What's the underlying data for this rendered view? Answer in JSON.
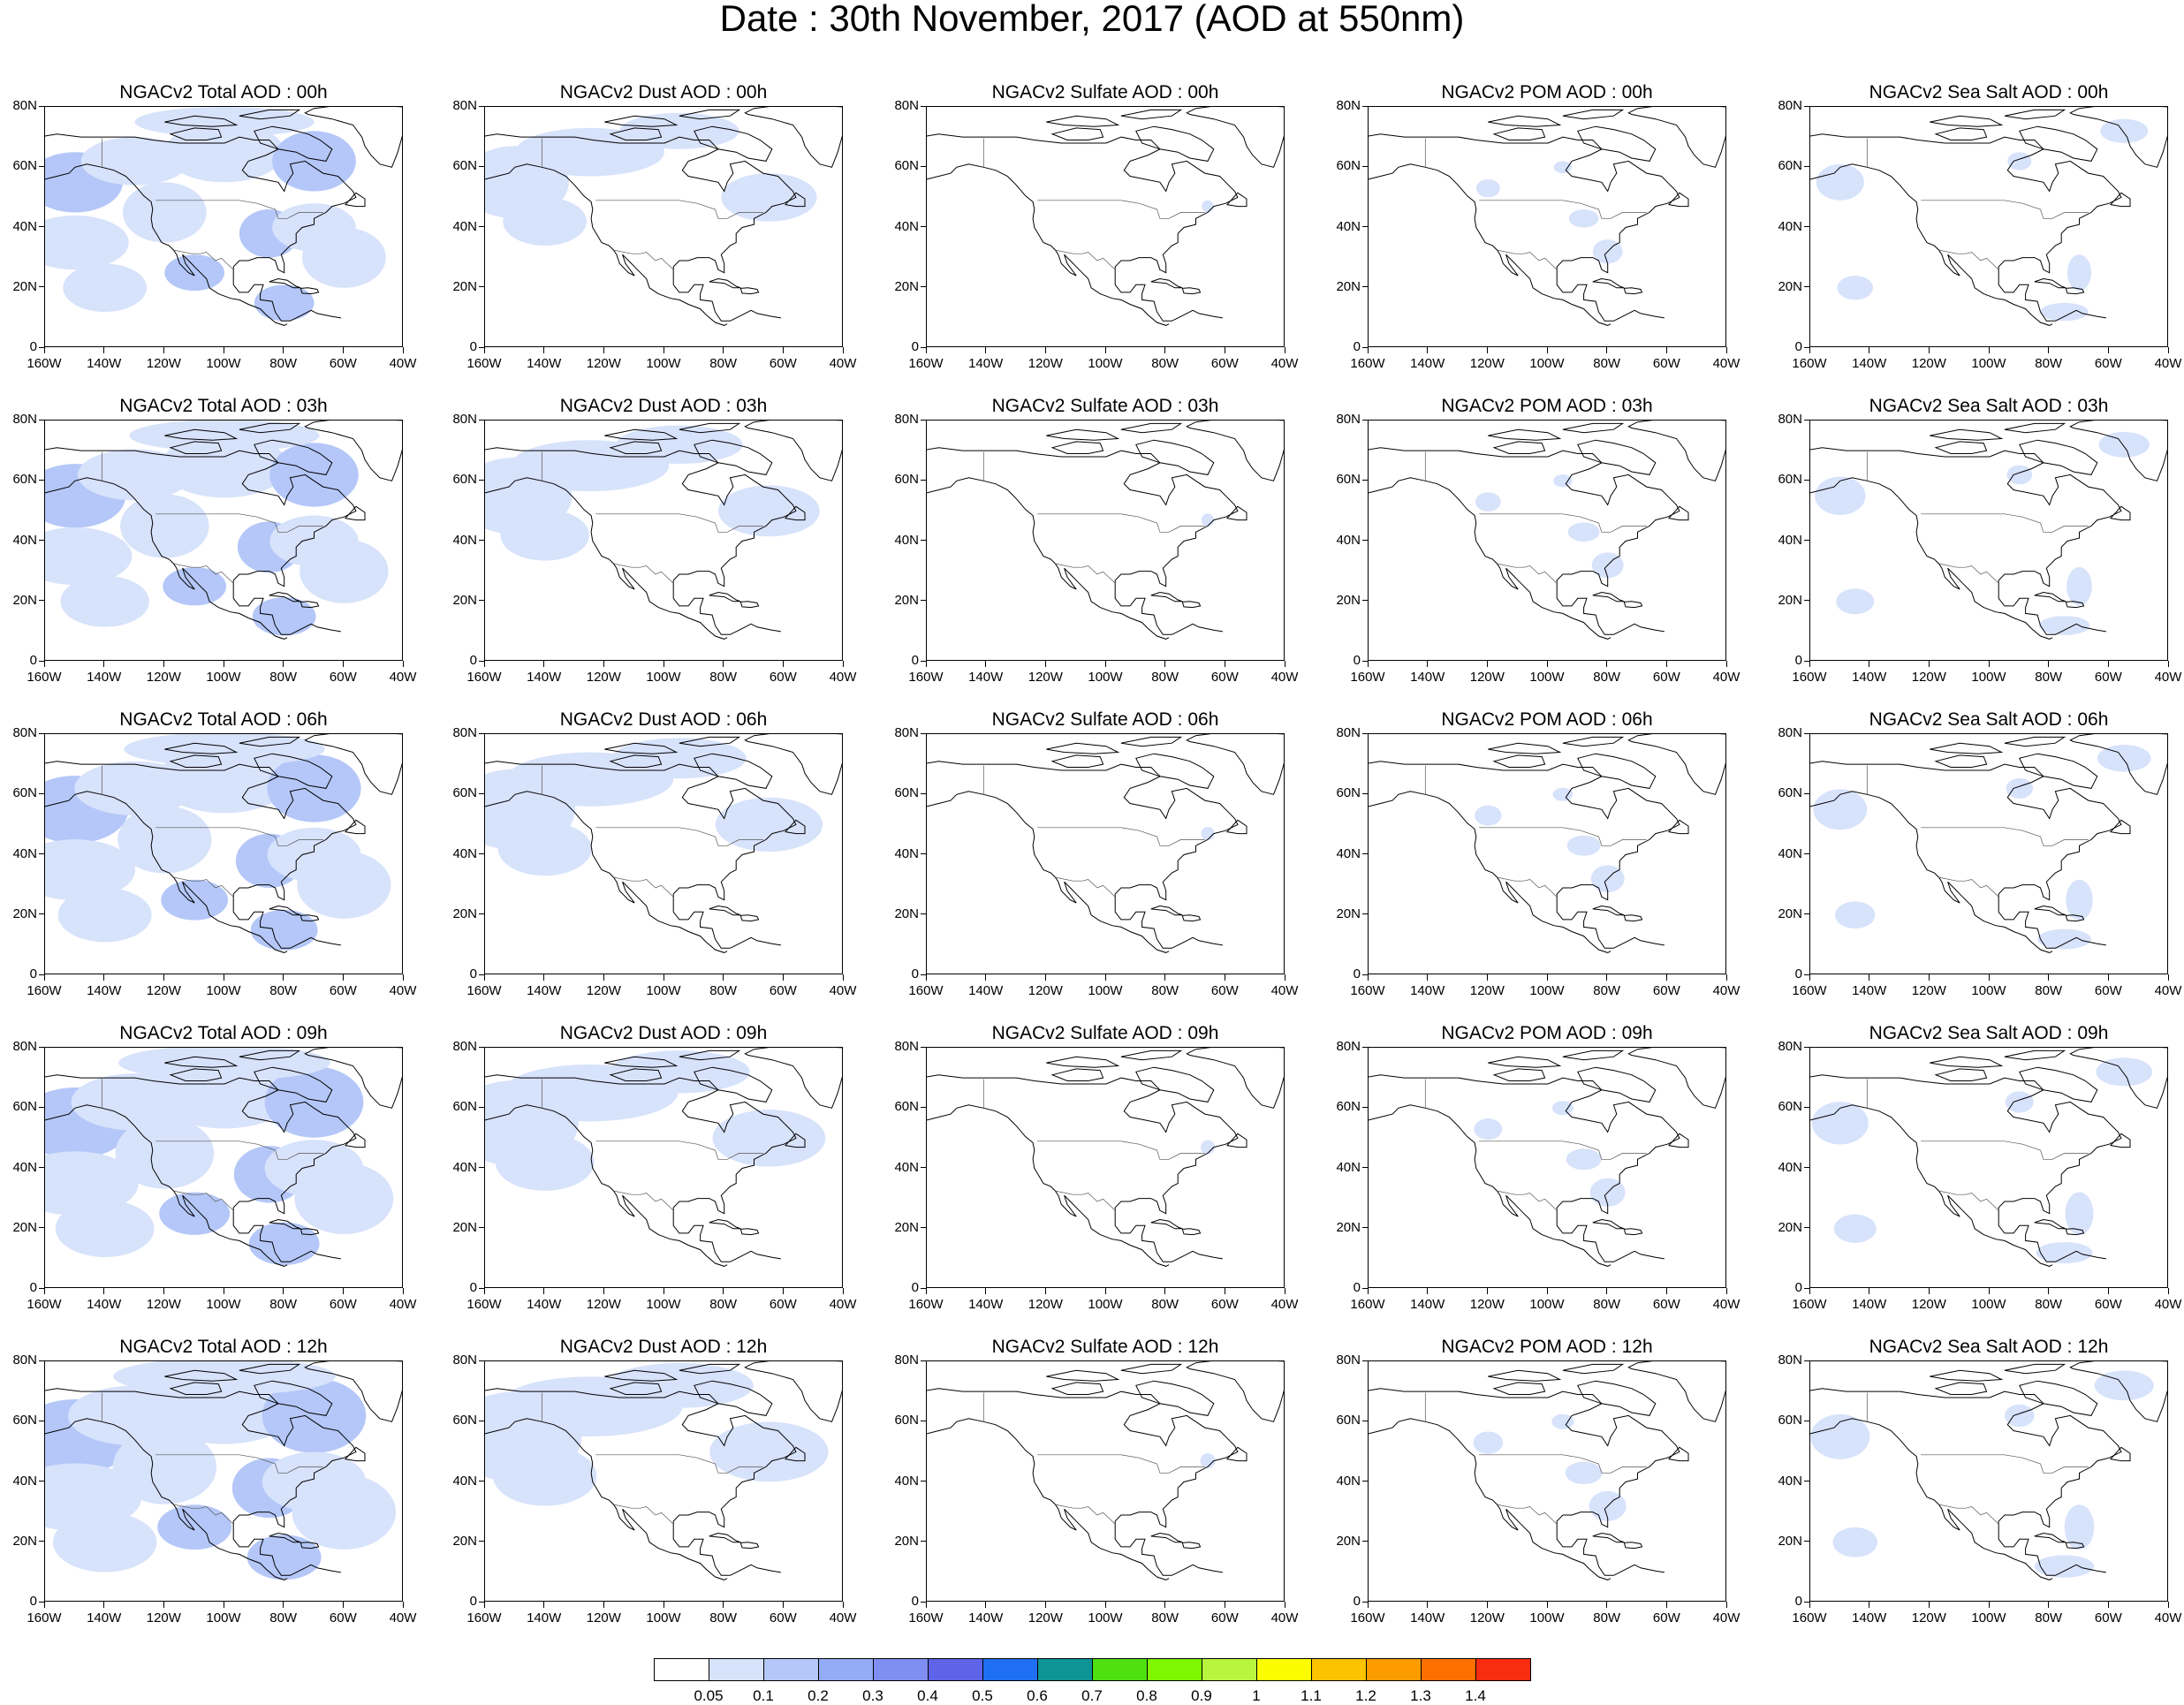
{
  "title": "Date : 30th November, 2017 (AOD at 550nm)",
  "panel_titles": [
    [
      "NGACv2 Total AOD : 00h",
      "NGACv2 Dust AOD : 00h",
      "NGACv2 Sulfate AOD : 00h",
      "NGACv2 POM AOD : 00h",
      "NGACv2 Sea Salt AOD : 00h"
    ],
    [
      "NGACv2 Total AOD : 03h",
      "NGACv2 Dust AOD : 03h",
      "NGACv2 Sulfate AOD : 03h",
      "NGACv2 POM AOD : 03h",
      "NGACv2 Sea Salt AOD : 03h"
    ],
    [
      "NGACv2 Total AOD : 06h",
      "NGACv2 Dust AOD : 06h",
      "NGACv2 Sulfate AOD : 06h",
      "NGACv2 POM AOD : 06h",
      "NGACv2 Sea Salt AOD : 06h"
    ],
    [
      "NGACv2 Total AOD : 09h",
      "NGACv2 Dust AOD : 09h",
      "NGACv2 Sulfate AOD : 09h",
      "NGACv2 POM AOD : 09h",
      "NGACv2 Sea Salt  AOD : 09h"
    ],
    [
      "NGACv2 Total AOD  : 12h",
      "NGACv2 Dust AOD : 12h",
      "NGACv2 Sulfate AOD : 12h",
      "NGACv2 POM  AOD : 12h",
      "NGACv2 Sea Salt  AOD : 12h"
    ]
  ],
  "x_tick_labels": [
    "160W",
    "140W",
    "120W",
    "100W",
    "80W",
    "60W",
    "40W"
  ],
  "y_tick_labels": [
    "0",
    "20N",
    "40N",
    "60N",
    "80N"
  ],
  "colorbar": {
    "labels": [
      "0.05",
      "0.1",
      "0.2",
      "0.3",
      "0.4",
      "0.5",
      "0.6",
      "0.7",
      "0.8",
      "0.9",
      "1",
      "1.1",
      "1.2",
      "1.3",
      "1.4"
    ],
    "colors": [
      "#ffffff",
      "#d7e2fb",
      "#b4c7f8",
      "#94abf5",
      "#7f8ef1",
      "#5e63e8",
      "#1f6ff2",
      "#0e9494",
      "#4fe012",
      "#7ff700",
      "#b9f43e",
      "#fcfc00",
      "#fcc400",
      "#fc9c00",
      "#fc7000",
      "#f82c10"
    ]
  },
  "map_extent": {
    "lon": [
      -160,
      -40
    ],
    "lat": [
      0,
      80
    ]
  },
  "colors": {
    "aod_low": "#d7e2fb",
    "aod_mid": "#b4c7f8",
    "coastline": "#000000"
  }
}
